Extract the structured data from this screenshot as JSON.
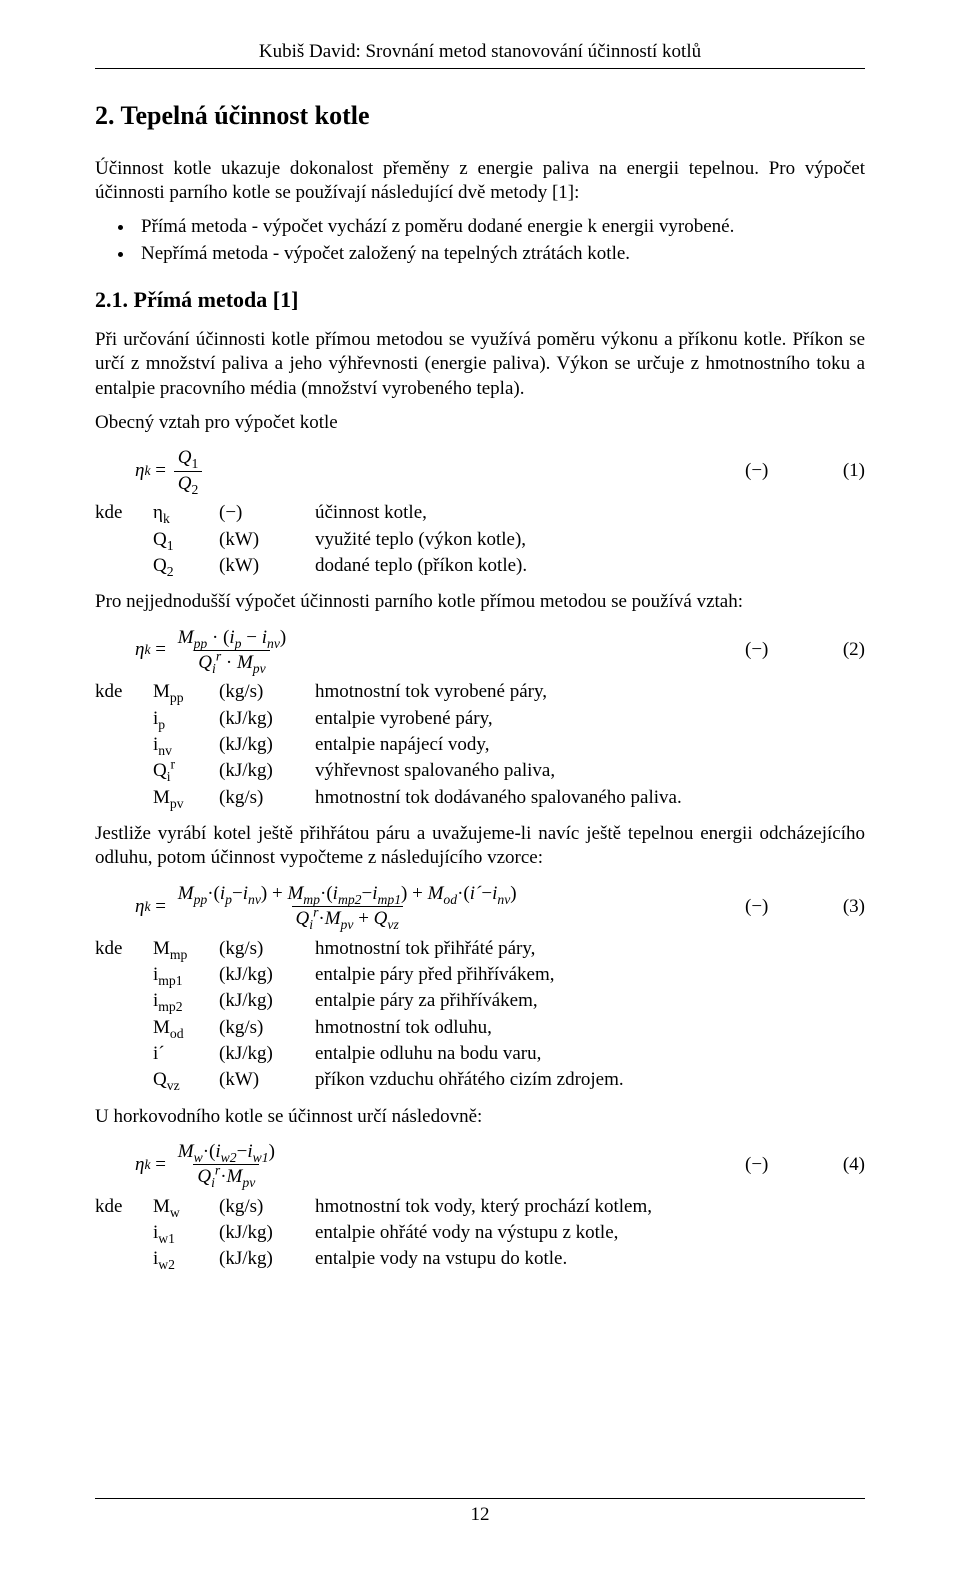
{
  "header": {
    "text": "Kubiš David: Srovnání metod stanovování účinností kotlů"
  },
  "section": {
    "number": "2.",
    "title": "Tepelná účinnost kotle"
  },
  "intro": "Účinnost kotle ukazuje dokonalost přeměny z energie paliva na energii tepelnou. Pro výpočet účinnosti parního kotle se používají následující dvě metody [1]:",
  "bullets": [
    "Přímá metoda - výpočet vychází z poměru dodané energie k energii vyrobené.",
    "Nepřímá metoda - výpočet založený na tepelných ztrátách kotle."
  ],
  "subsection": {
    "number": "2.1.",
    "title": "Přímá metoda [1]"
  },
  "para1": "Při určování účinnosti kotle přímou metodou se využívá poměru výkonu a příkonu kotle. Příkon se určí z množství paliva a jeho výhřevnosti (energie paliva). Výkon se určuje z hmotnostního toku a entalpie pracovního média (množství vyrobeného tepla).",
  "para2": "Obecný vztah pro výpočet kotle",
  "para3": "Pro nejjednodušší výpočet účinnosti parního kotle přímou metodou se používá vztah:",
  "para4": "Jestliže vyrábí kotel ještě přihřátou páru a uvažujeme-li navíc ještě tepelnou energii odcházejícího odluhu, potom účinnost vypočteme z následujícího vzorce:",
  "para5": "U horkovodního kotle se účinnost určí následovně:",
  "eq1": {
    "lhs": "η",
    "lhs_sub": "k",
    "num": "Q₁",
    "den": "Q₂",
    "unit": "(−)",
    "no": "(1)"
  },
  "where1": {
    "kde": "kde",
    "rows": [
      {
        "sym_text": "η",
        "sym_sub": "k",
        "unit": "(−)",
        "desc": "účinnost kotle,"
      },
      {
        "sym_text": "Q",
        "sym_sub": "1",
        "unit": "(kW)",
        "desc": "využité teplo (výkon kotle),"
      },
      {
        "sym_text": "Q",
        "sym_sub": "2",
        "unit": "(kW)",
        "desc": "dodané teplo (příkon kotle)."
      }
    ]
  },
  "eq2": {
    "unit": "(−)",
    "no": "(2)"
  },
  "where2": {
    "kde": "kde",
    "rows": [
      {
        "sym_text": "M",
        "sym_sub": "pp",
        "unit": "(kg/s)",
        "desc": "hmotnostní tok vyrobené páry,"
      },
      {
        "sym_text": "i",
        "sym_sub": "p",
        "unit": "(kJ/kg)",
        "desc": "entalpie vyrobené páry,"
      },
      {
        "sym_text": "i",
        "sym_sub": "nv",
        "unit": "(kJ/kg)",
        "desc": "entalpie napájecí vody,"
      },
      {
        "sym_text": "Q",
        "sym_sub": "i",
        "sym_sup": "r",
        "unit": "(kJ/kg)",
        "desc": "výhřevnost spalovaného paliva,"
      },
      {
        "sym_text": "M",
        "sym_sub": "pv",
        "unit": "(kg/s)",
        "desc": "hmotnostní tok dodávaného spalovaného paliva."
      }
    ]
  },
  "eq3": {
    "unit": "(−)",
    "no": "(3)"
  },
  "where3": {
    "kde": "kde",
    "rows": [
      {
        "sym_text": "M",
        "sym_sub": "mp",
        "unit": "(kg/s)",
        "desc": "hmotnostní tok přihřáté páry,"
      },
      {
        "sym_text": "i",
        "sym_sub": "mp1",
        "unit": "(kJ/kg)",
        "desc": "entalpie páry před přihřívákem,"
      },
      {
        "sym_text": "i",
        "sym_sub": "mp2",
        "unit": "(kJ/kg)",
        "desc": "entalpie páry za přihřívákem,"
      },
      {
        "sym_text": "M",
        "sym_sub": "od",
        "unit": "(kg/s)",
        "desc": "hmotnostní tok odluhu,"
      },
      {
        "sym_text": "i´",
        "sym_sub": "",
        "unit": "(kJ/kg)",
        "desc": "entalpie odluhu na bodu varu,"
      },
      {
        "sym_text": "Q",
        "sym_sub": "vz",
        "unit": "(kW)",
        "desc": "příkon vzduchu ohřátého cizím zdrojem."
      }
    ]
  },
  "eq4": {
    "unit": "(−)",
    "no": "(4)"
  },
  "where4": {
    "kde": "kde",
    "rows": [
      {
        "sym_text": "M",
        "sym_sub": "w",
        "unit": "(kg/s)",
        "desc": "hmotnostní tok vody, který prochází kotlem,"
      },
      {
        "sym_text": "i",
        "sym_sub": "w1",
        "unit": "(kJ/kg)",
        "desc": "entalpie ohřáté vody na výstupu z kotle,"
      },
      {
        "sym_text": "i",
        "sym_sub": "w2",
        "unit": "(kJ/kg)",
        "desc": "entalpie vody na vstupu do kotle."
      }
    ]
  },
  "footer": {
    "page": "12"
  }
}
